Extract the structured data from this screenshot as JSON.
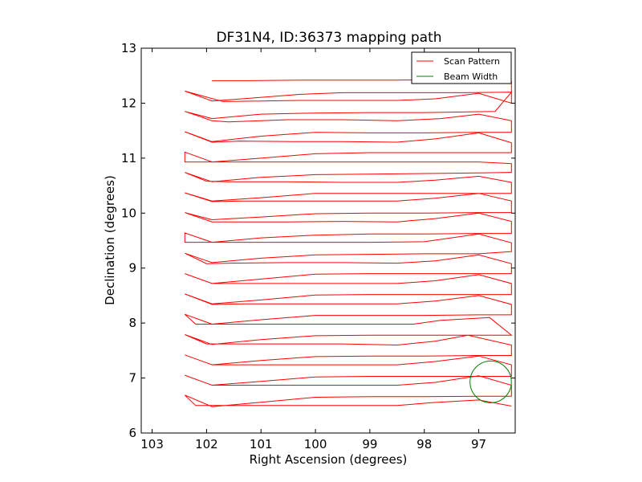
{
  "chart_data": {
    "type": "line",
    "title": "DF31N4, ID:36373 mapping path",
    "xlabel": "Right Ascension (degrees)",
    "ylabel": "Declination (degrees)",
    "xlim": [
      103.2,
      96.33
    ],
    "ylim": [
      6,
      13
    ],
    "x_ticks": [
      "103",
      "102",
      "101",
      "100",
      "99",
      "98",
      "97"
    ],
    "y_ticks": [
      "6",
      "7",
      "8",
      "9",
      "10",
      "11",
      "12",
      "13"
    ],
    "grid": false,
    "legend_position": "top-right",
    "series": [
      {
        "name": "Scan Pattern",
        "color": "#ff0000",
        "points": [
          [
            101.9,
            12.41
          ],
          [
            101.2,
            12.41
          ],
          [
            100.3,
            12.42
          ],
          [
            99.5,
            12.42
          ],
          [
            98.5,
            12.42
          ],
          [
            97.5,
            12.43
          ],
          [
            97.0,
            12.42
          ],
          [
            96.4,
            12.4
          ],
          [
            96.4,
            12.0
          ],
          [
            97.0,
            12.18
          ],
          [
            97.8,
            12.08
          ],
          [
            98.5,
            12.05
          ],
          [
            99.5,
            12.05
          ],
          [
            100.3,
            12.05
          ],
          [
            101.0,
            12.04
          ],
          [
            101.7,
            12.03
          ],
          [
            102.4,
            12.22
          ],
          [
            101.9,
            12.04
          ],
          [
            101.2,
            12.09
          ],
          [
            100.3,
            12.16
          ],
          [
            99.5,
            12.19
          ],
          [
            98.5,
            12.19
          ],
          [
            97.8,
            12.19
          ],
          [
            97.3,
            12.19
          ],
          [
            96.4,
            12.2
          ],
          [
            96.7,
            11.85
          ],
          [
            97.3,
            11.84
          ],
          [
            98.0,
            11.83
          ],
          [
            99.0,
            11.83
          ],
          [
            100.0,
            11.82
          ],
          [
            101.0,
            11.8
          ],
          [
            101.9,
            11.72
          ],
          [
            102.4,
            11.85
          ],
          [
            101.9,
            11.68
          ],
          [
            101.6,
            11.66
          ],
          [
            100.5,
            11.7
          ],
          [
            99.5,
            11.7
          ],
          [
            98.5,
            11.68
          ],
          [
            97.7,
            11.72
          ],
          [
            97.0,
            11.8
          ],
          [
            96.4,
            11.68
          ],
          [
            96.4,
            11.47
          ],
          [
            97.0,
            11.47
          ],
          [
            98.0,
            11.46
          ],
          [
            99.0,
            11.46
          ],
          [
            100.0,
            11.47
          ],
          [
            101.0,
            11.4
          ],
          [
            101.9,
            11.3
          ],
          [
            102.4,
            11.48
          ],
          [
            101.9,
            11.29
          ],
          [
            101.4,
            11.31
          ],
          [
            100.4,
            11.3
          ],
          [
            99.5,
            11.3
          ],
          [
            98.5,
            11.29
          ],
          [
            97.8,
            11.35
          ],
          [
            97.0,
            11.46
          ],
          [
            96.4,
            11.28
          ],
          [
            96.4,
            11.1
          ],
          [
            97.0,
            11.1
          ],
          [
            98.0,
            11.1
          ],
          [
            99.0,
            11.1
          ],
          [
            100.0,
            11.08
          ],
          [
            101.0,
            11.0
          ],
          [
            101.9,
            10.93
          ],
          [
            102.4,
            11.11
          ],
          [
            102.4,
            10.93
          ],
          [
            101.9,
            10.93
          ],
          [
            101.0,
            10.93
          ],
          [
            100.0,
            10.93
          ],
          [
            99.0,
            10.93
          ],
          [
            98.0,
            10.93
          ],
          [
            97.0,
            10.93
          ],
          [
            96.4,
            10.9
          ],
          [
            96.4,
            10.74
          ],
          [
            97.0,
            10.73
          ],
          [
            98.0,
            10.72
          ],
          [
            99.0,
            10.71
          ],
          [
            100.0,
            10.7
          ],
          [
            101.0,
            10.65
          ],
          [
            101.9,
            10.57
          ],
          [
            102.4,
            10.74
          ],
          [
            102.0,
            10.58
          ],
          [
            101.6,
            10.57
          ],
          [
            100.5,
            10.57
          ],
          [
            99.5,
            10.56
          ],
          [
            98.5,
            10.56
          ],
          [
            97.8,
            10.6
          ],
          [
            97.0,
            10.67
          ],
          [
            96.4,
            10.56
          ],
          [
            96.4,
            10.36
          ],
          [
            97.0,
            10.36
          ],
          [
            98.0,
            10.36
          ],
          [
            99.0,
            10.36
          ],
          [
            100.0,
            10.36
          ],
          [
            101.0,
            10.28
          ],
          [
            101.9,
            10.22
          ],
          [
            102.4,
            10.37
          ],
          [
            101.9,
            10.21
          ],
          [
            101.3,
            10.22
          ],
          [
            100.5,
            10.22
          ],
          [
            99.5,
            10.22
          ],
          [
            98.5,
            10.22
          ],
          [
            97.8,
            10.27
          ],
          [
            97.0,
            10.36
          ],
          [
            96.4,
            10.22
          ],
          [
            96.4,
            10.01
          ],
          [
            97.0,
            10.01
          ],
          [
            98.0,
            10.0
          ],
          [
            99.0,
            10.0
          ],
          [
            100.0,
            9.99
          ],
          [
            101.0,
            9.93
          ],
          [
            101.9,
            9.88
          ],
          [
            102.4,
            10.01
          ],
          [
            101.9,
            9.84
          ],
          [
            101.3,
            9.84
          ],
          [
            100.5,
            9.84
          ],
          [
            99.5,
            9.85
          ],
          [
            98.5,
            9.84
          ],
          [
            97.8,
            9.9
          ],
          [
            97.0,
            10.0
          ],
          [
            96.4,
            9.85
          ],
          [
            96.4,
            9.63
          ],
          [
            97.0,
            9.63
          ],
          [
            98.0,
            9.62
          ],
          [
            99.0,
            9.62
          ],
          [
            100.0,
            9.6
          ],
          [
            101.0,
            9.55
          ],
          [
            101.9,
            9.47
          ],
          [
            102.4,
            9.64
          ],
          [
            102.4,
            9.47
          ],
          [
            101.9,
            9.47
          ],
          [
            101.0,
            9.47
          ],
          [
            100.0,
            9.47
          ],
          [
            99.0,
            9.47
          ],
          [
            98.0,
            9.48
          ],
          [
            97.0,
            9.62
          ],
          [
            96.4,
            9.46
          ],
          [
            96.4,
            9.3
          ],
          [
            97.0,
            9.26
          ],
          [
            98.0,
            9.26
          ],
          [
            99.0,
            9.25
          ],
          [
            100.0,
            9.24
          ],
          [
            101.0,
            9.18
          ],
          [
            101.9,
            9.1
          ],
          [
            102.4,
            9.27
          ],
          [
            102.0,
            9.08
          ],
          [
            101.6,
            9.09
          ],
          [
            100.5,
            9.1
          ],
          [
            99.5,
            9.1
          ],
          [
            98.5,
            9.09
          ],
          [
            97.8,
            9.13
          ],
          [
            97.0,
            9.24
          ],
          [
            96.4,
            9.08
          ],
          [
            96.4,
            8.9
          ],
          [
            97.0,
            8.9
          ],
          [
            98.0,
            8.9
          ],
          [
            99.0,
            8.9
          ],
          [
            100.0,
            8.89
          ],
          [
            101.0,
            8.8
          ],
          [
            101.9,
            8.72
          ],
          [
            102.4,
            8.9
          ],
          [
            101.9,
            8.72
          ],
          [
            101.3,
            8.72
          ],
          [
            100.5,
            8.72
          ],
          [
            99.5,
            8.72
          ],
          [
            98.5,
            8.72
          ],
          [
            97.8,
            8.77
          ],
          [
            97.0,
            8.88
          ],
          [
            96.4,
            8.72
          ],
          [
            96.4,
            8.52
          ],
          [
            97.0,
            8.52
          ],
          [
            98.0,
            8.52
          ],
          [
            99.0,
            8.52
          ],
          [
            100.0,
            8.51
          ],
          [
            101.0,
            8.42
          ],
          [
            101.9,
            8.35
          ],
          [
            102.4,
            8.53
          ],
          [
            101.9,
            8.34
          ],
          [
            101.3,
            8.35
          ],
          [
            100.5,
            8.35
          ],
          [
            99.5,
            8.35
          ],
          [
            98.5,
            8.35
          ],
          [
            97.8,
            8.4
          ],
          [
            97.0,
            8.5
          ],
          [
            96.4,
            8.34
          ],
          [
            96.4,
            8.15
          ],
          [
            97.0,
            8.15
          ],
          [
            98.0,
            8.14
          ],
          [
            99.0,
            8.14
          ],
          [
            100.0,
            8.14
          ],
          [
            101.0,
            8.06
          ],
          [
            101.9,
            7.98
          ],
          [
            102.4,
            8.16
          ],
          [
            102.2,
            7.98
          ],
          [
            101.6,
            7.98
          ],
          [
            100.5,
            7.98
          ],
          [
            99.5,
            7.98
          ],
          [
            98.2,
            7.98
          ],
          [
            97.7,
            8.05
          ],
          [
            96.8,
            8.1
          ],
          [
            96.4,
            7.78
          ],
          [
            96.4,
            7.78
          ],
          [
            97.0,
            7.78
          ],
          [
            98.0,
            7.78
          ],
          [
            99.0,
            7.78
          ],
          [
            100.0,
            7.77
          ],
          [
            101.0,
            7.7
          ],
          [
            101.9,
            7.61
          ],
          [
            102.4,
            7.79
          ],
          [
            102.0,
            7.62
          ],
          [
            101.6,
            7.62
          ],
          [
            100.5,
            7.62
          ],
          [
            99.5,
            7.62
          ],
          [
            98.5,
            7.6
          ],
          [
            97.8,
            7.67
          ],
          [
            97.2,
            7.78
          ],
          [
            96.4,
            7.6
          ],
          [
            96.4,
            7.41
          ],
          [
            97.0,
            7.41
          ],
          [
            98.0,
            7.4
          ],
          [
            99.0,
            7.4
          ],
          [
            100.0,
            7.39
          ],
          [
            101.0,
            7.32
          ],
          [
            101.9,
            7.24
          ],
          [
            102.4,
            7.42
          ],
          [
            101.9,
            7.24
          ],
          [
            101.3,
            7.24
          ],
          [
            100.5,
            7.24
          ],
          [
            99.5,
            7.24
          ],
          [
            98.5,
            7.24
          ],
          [
            97.8,
            7.3
          ],
          [
            97.0,
            7.4
          ],
          [
            96.4,
            7.24
          ],
          [
            96.4,
            7.03
          ],
          [
            97.0,
            7.03
          ],
          [
            98.0,
            7.03
          ],
          [
            99.0,
            7.03
          ],
          [
            100.0,
            7.02
          ],
          [
            101.0,
            6.94
          ],
          [
            101.9,
            6.87
          ],
          [
            102.4,
            7.05
          ],
          [
            101.9,
            6.87
          ],
          [
            101.3,
            6.87
          ],
          [
            100.5,
            6.87
          ],
          [
            99.5,
            6.87
          ],
          [
            98.5,
            6.87
          ],
          [
            97.8,
            6.92
          ],
          [
            97.0,
            7.04
          ],
          [
            96.4,
            6.87
          ],
          [
            96.4,
            6.67
          ],
          [
            97.0,
            6.67
          ],
          [
            98.0,
            6.66
          ],
          [
            99.0,
            6.66
          ],
          [
            100.0,
            6.65
          ],
          [
            101.0,
            6.56
          ],
          [
            101.9,
            6.48
          ],
          [
            102.4,
            6.69
          ],
          [
            102.2,
            6.5
          ],
          [
            101.6,
            6.5
          ],
          [
            100.5,
            6.5
          ],
          [
            99.5,
            6.5
          ],
          [
            98.5,
            6.5
          ],
          [
            97.9,
            6.55
          ],
          [
            97.0,
            6.6
          ],
          [
            96.4,
            6.49
          ]
        ]
      },
      {
        "name": "Beam Width",
        "color": "#008000",
        "center": [
          96.78,
          6.93
        ],
        "radius_x_deg": 0.38,
        "radius_y_deg": 0.38
      }
    ]
  }
}
